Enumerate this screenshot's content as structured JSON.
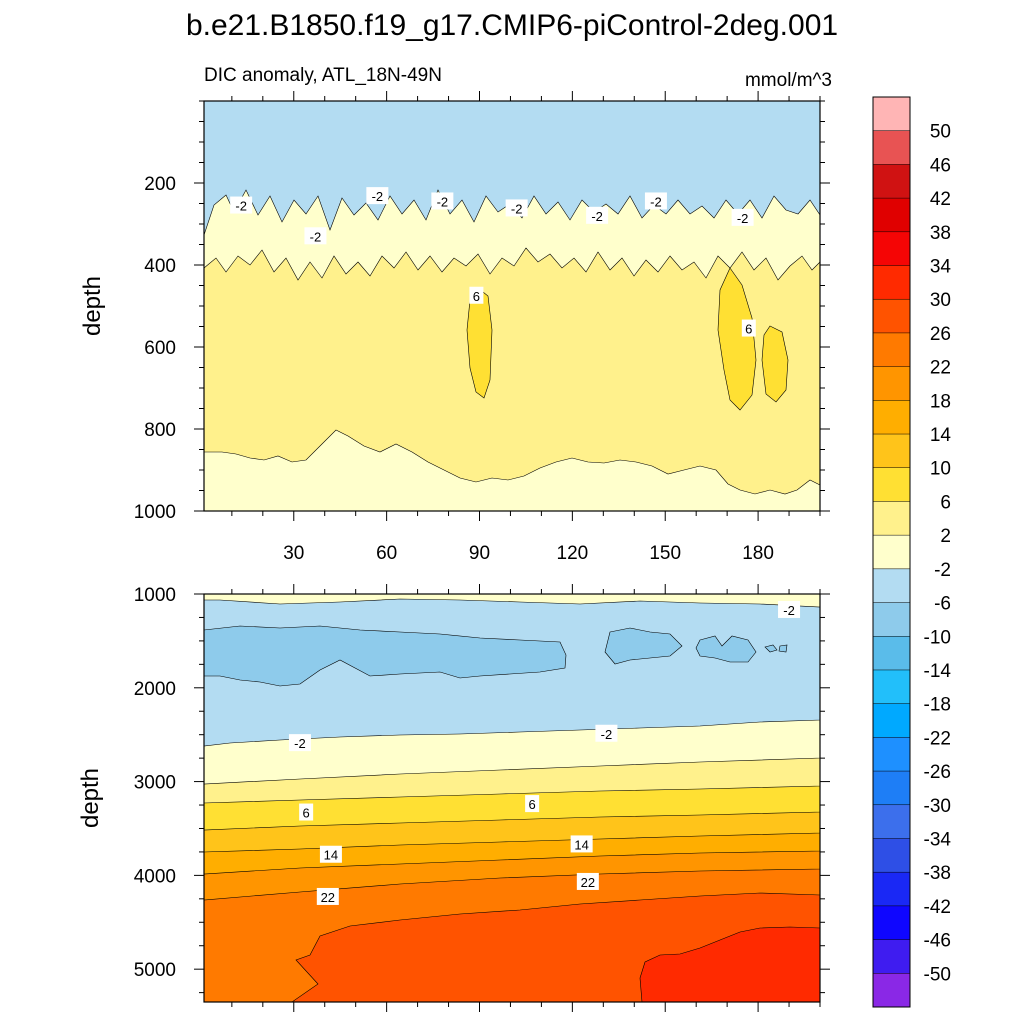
{
  "title": "b.e21.B1850.f19_g17.CMIP6-piControl-2deg.001",
  "chart_data": [
    {
      "type": "heatmap",
      "subtitle_left": "DIC anomaly, ATL_18N-49N",
      "subtitle_right": "mmol/m^3",
      "xlabel": "",
      "ylabel": "depth",
      "xlim": [
        1,
        200
      ],
      "ylim": [
        1000,
        0
      ],
      "xticks": [
        30,
        60,
        90,
        120,
        150,
        180
      ],
      "yticks": [
        200,
        400,
        600,
        800,
        1000
      ],
      "contour_labels": [
        {
          "text": "-2",
          "x": 13,
          "depth": 255
        },
        {
          "text": "-2",
          "x": 37,
          "depth": 330
        },
        {
          "text": "-2",
          "x": 57,
          "depth": 232
        },
        {
          "text": "-2",
          "x": 78,
          "depth": 245
        },
        {
          "text": "-2",
          "x": 102,
          "depth": 262
        },
        {
          "text": "-2",
          "x": 128,
          "depth": 280
        },
        {
          "text": "-2",
          "x": 147,
          "depth": 245
        },
        {
          "text": "-2",
          "x": 175,
          "depth": 285
        },
        {
          "text": "6",
          "x": 89,
          "depth": 475
        },
        {
          "text": "6",
          "x": 177,
          "depth": 555
        }
      ]
    },
    {
      "type": "heatmap",
      "xlabel": "",
      "ylabel": "depth",
      "xlim": [
        1,
        200
      ],
      "ylim": [
        5350,
        1000
      ],
      "xticks": [
        30,
        60,
        90,
        120,
        150,
        180
      ],
      "yticks": [
        1000,
        2000,
        3000,
        4000,
        5000
      ],
      "contour_labels": [
        {
          "text": "-2",
          "x": 190,
          "depth": 1170
        },
        {
          "text": "-2",
          "x": 32,
          "depth": 2590
        },
        {
          "text": "-2",
          "x": 131,
          "depth": 2490
        },
        {
          "text": "6",
          "x": 34,
          "depth": 3330
        },
        {
          "text": "6",
          "x": 107,
          "depth": 3240
        },
        {
          "text": "14",
          "x": 42,
          "depth": 3780
        },
        {
          "text": "14",
          "x": 123,
          "depth": 3670
        },
        {
          "text": "22",
          "x": 41,
          "depth": 4230
        },
        {
          "text": "22",
          "x": 125,
          "depth": 4070
        }
      ]
    }
  ],
  "colorbar": {
    "labels": [
      "50",
      "46",
      "42",
      "38",
      "34",
      "30",
      "26",
      "22",
      "18",
      "14",
      "10",
      "6",
      "2",
      "-2",
      "-6",
      "-10",
      "-14",
      "-18",
      "-22",
      "-26",
      "-30",
      "-34",
      "-38",
      "-42",
      "-46",
      "-50"
    ],
    "colors": [
      "#FFB5B5",
      "#E85353",
      "#D01212",
      "#E00000",
      "#F50505",
      "#FF2A00",
      "#FF5300",
      "#FF7A00",
      "#FF9500",
      "#FFAE00",
      "#FFC41A",
      "#FFE033",
      "#FFF18C",
      "#FFFFCC",
      "#B3DCF2",
      "#8ECBEB",
      "#5ABCEA",
      "#22BFFA",
      "#00A9FF",
      "#1E90FF",
      "#1E7EF6",
      "#3C6FEC",
      "#2E4FE6",
      "#1A28F5",
      "#0F06FF",
      "#3F1CF0",
      "#8A28E6"
    ]
  }
}
